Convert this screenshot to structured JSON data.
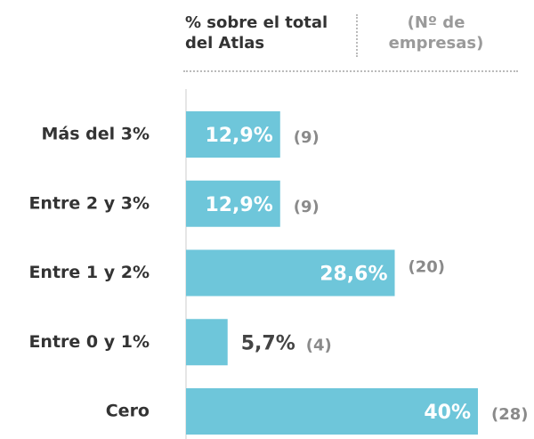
{
  "chart_data": {
    "type": "bar",
    "orientation": "horizontal",
    "categories": [
      "Más del 3%",
      "Entre 2 y 3%",
      "Entre 1 y 2%",
      "Entre 0 y 1%",
      "Cero"
    ],
    "xlim": [
      0,
      40
    ],
    "series": [
      {
        "name": "% sobre el total del Atlas",
        "color": "#6ec6da",
        "values": [
          12.9,
          12.9,
          28.6,
          5.7,
          40
        ],
        "value_labels": [
          "12,9%",
          "12,9%",
          "28,6%",
          "5,7%",
          "40%"
        ]
      },
      {
        "name": "(Nº de empresas)",
        "color": "#8a8a8a",
        "values": [
          9,
          9,
          20,
          4,
          28
        ],
        "value_labels": [
          "(9)",
          "(9)",
          "(20)",
          "(4)",
          "(28)"
        ]
      }
    ]
  }
}
